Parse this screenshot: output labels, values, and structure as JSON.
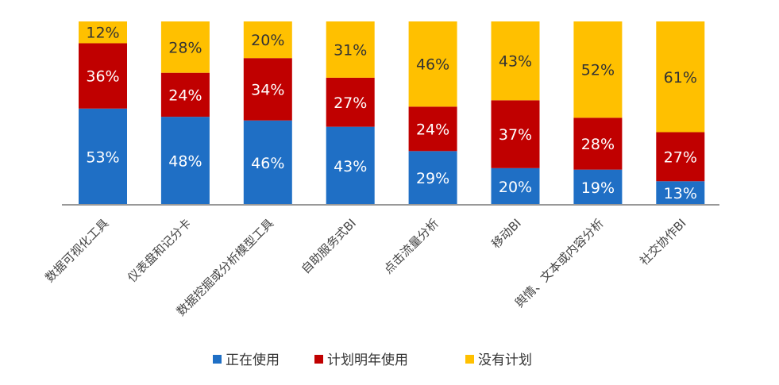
{
  "chart_data": {
    "type": "bar",
    "stacked": true,
    "title": "",
    "xlabel": "",
    "ylabel": "",
    "ylim": [
      0,
      100
    ],
    "unit": "%",
    "grid": false,
    "legend_position": "bottom",
    "categories": [
      "数据可视化工具",
      "仪表盘和记分卡",
      "数据挖掘或分析模型工具",
      "自助服务式BI",
      "点击流量分析",
      "移动BI",
      "舆情、文本或内容分析",
      "社交协作BI"
    ],
    "series": [
      {
        "name": "正在使用",
        "color": "#1f6fc5",
        "values": [
          53,
          48,
          46,
          43,
          29,
          20,
          19,
          13
        ]
      },
      {
        "name": "计划明年使用",
        "color": "#c00000",
        "values": [
          36,
          24,
          34,
          27,
          24,
          37,
          28,
          27
        ]
      },
      {
        "name": "没有计划",
        "color": "#ffc000",
        "values": [
          12,
          28,
          20,
          31,
          46,
          43,
          52,
          61
        ]
      }
    ]
  }
}
